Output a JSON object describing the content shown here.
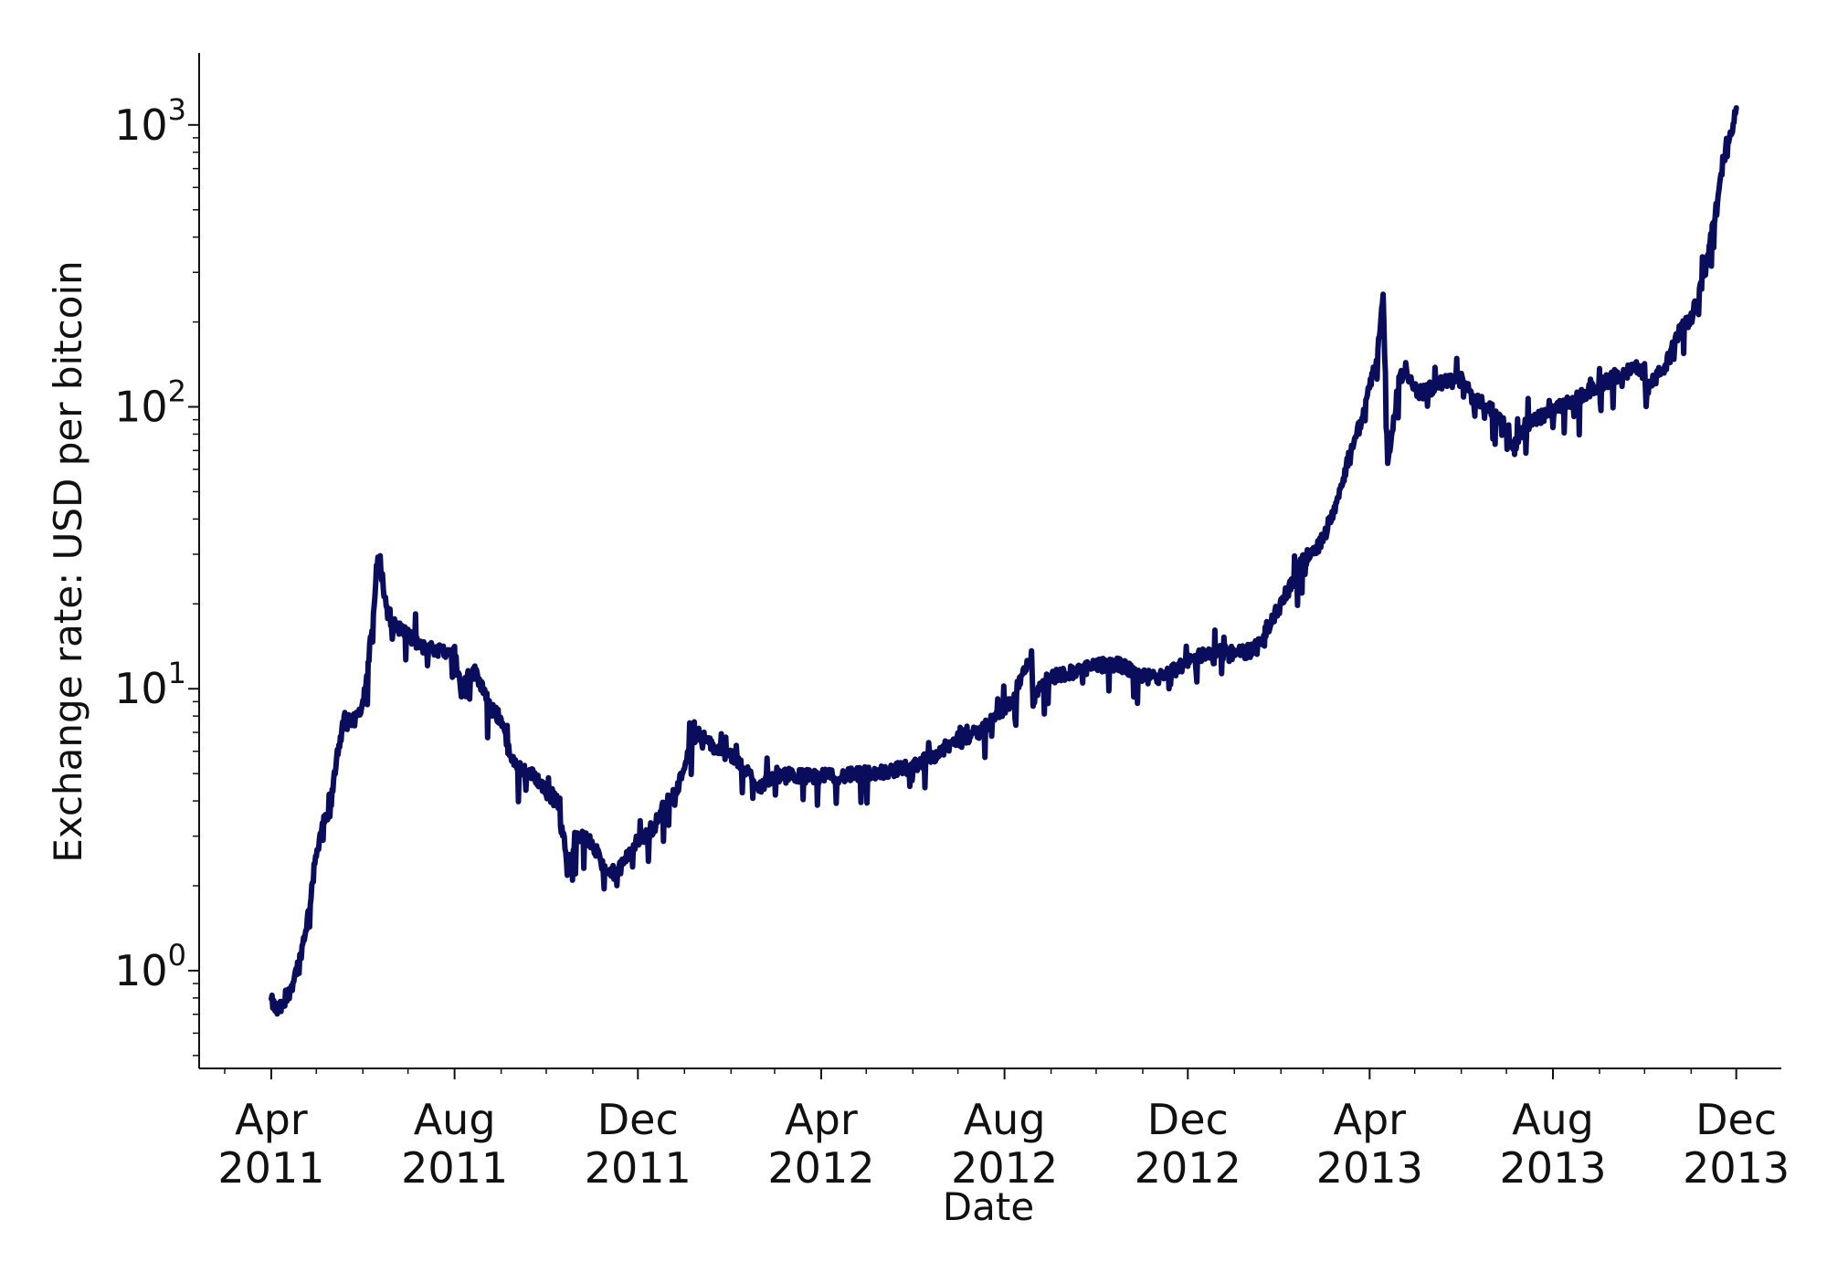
{
  "chart_data": {
    "type": "line",
    "title": "",
    "xlabel": "Date",
    "ylabel": "Exchange rate: USD per bitcoin",
    "yscale": "log",
    "ylim": [
      0.45,
      1800
    ],
    "xlim": [
      "2011-02-12",
      "2013-12-31"
    ],
    "grid": false,
    "legend": "none",
    "line_color": "#0a0d5c",
    "x_ticks": [
      {
        "date": "2011-04-01",
        "line1": "Apr",
        "line2": "2011"
      },
      {
        "date": "2011-08-01",
        "line1": "Aug",
        "line2": "2011"
      },
      {
        "date": "2011-12-01",
        "line1": "Dec",
        "line2": "2011"
      },
      {
        "date": "2012-04-01",
        "line1": "Apr",
        "line2": "2012"
      },
      {
        "date": "2012-08-01",
        "line1": "Aug",
        "line2": "2012"
      },
      {
        "date": "2012-12-01",
        "line1": "Dec",
        "line2": "2012"
      },
      {
        "date": "2013-04-01",
        "line1": "Apr",
        "line2": "2013"
      },
      {
        "date": "2013-08-01",
        "line1": "Aug",
        "line2": "2013"
      },
      {
        "date": "2013-12-01",
        "line1": "Dec",
        "line2": "2013"
      }
    ],
    "y_ticks": [
      {
        "value": 1,
        "base": "10",
        "exp": "0"
      },
      {
        "value": 10,
        "base": "10",
        "exp": "1"
      },
      {
        "value": 100,
        "base": "10",
        "exp": "2"
      },
      {
        "value": 1000,
        "base": "10",
        "exp": "3"
      }
    ],
    "series": [
      {
        "x": [
          "2011-04-01",
          "2011-04-05",
          "2011-04-10",
          "2011-04-15",
          "2011-04-20",
          "2011-04-25",
          "2011-05-01",
          "2011-05-05",
          "2011-05-10",
          "2011-05-15",
          "2011-05-20",
          "2011-05-25",
          "2011-06-01",
          "2011-06-05",
          "2011-06-08",
          "2011-06-10",
          "2011-06-12",
          "2011-06-15",
          "2011-06-19",
          "2011-06-25",
          "2011-07-01",
          "2011-07-10",
          "2011-07-20",
          "2011-08-01",
          "2011-08-05",
          "2011-08-10",
          "2011-08-15",
          "2011-08-20",
          "2011-08-25",
          "2011-09-01",
          "2011-09-08",
          "2011-09-15",
          "2011-09-20",
          "2011-09-25",
          "2011-10-01",
          "2011-10-10",
          "2011-10-15",
          "2011-10-20",
          "2011-10-25",
          "2011-11-01",
          "2011-11-10",
          "2011-11-18",
          "2011-11-25",
          "2011-12-01",
          "2011-12-10",
          "2011-12-20",
          "2011-12-28",
          "2012-01-05",
          "2012-01-10",
          "2012-01-20",
          "2012-02-01",
          "2012-02-10",
          "2012-02-20",
          "2012-03-01",
          "2012-03-15",
          "2012-04-01",
          "2012-04-15",
          "2012-05-01",
          "2012-05-15",
          "2012-06-01",
          "2012-06-15",
          "2012-07-01",
          "2012-07-15",
          "2012-08-01",
          "2012-08-08",
          "2012-08-12",
          "2012-08-16",
          "2012-08-19",
          "2012-08-20",
          "2012-08-25",
          "2012-09-01",
          "2012-09-15",
          "2012-10-01",
          "2012-10-15",
          "2012-11-01",
          "2012-11-15",
          "2012-12-01",
          "2012-12-15",
          "2013-01-01",
          "2013-01-15",
          "2013-02-01",
          "2013-02-15",
          "2013-03-01",
          "2013-03-10",
          "2013-03-20",
          "2013-03-28",
          "2013-04-03",
          "2013-04-06",
          "2013-04-08",
          "2013-04-10",
          "2013-04-12",
          "2013-04-13",
          "2013-04-16",
          "2013-04-20",
          "2013-04-25",
          "2013-05-01",
          "2013-05-10",
          "2013-05-20",
          "2013-06-01",
          "2013-06-10",
          "2013-06-20",
          "2013-07-01",
          "2013-07-05",
          "2013-07-15",
          "2013-08-01",
          "2013-08-15",
          "2013-09-01",
          "2013-09-15",
          "2013-10-01",
          "2013-10-02",
          "2013-10-15",
          "2013-10-25",
          "2013-11-01",
          "2013-11-05",
          "2013-11-10",
          "2013-11-15",
          "2013-11-18",
          "2013-11-22",
          "2013-11-25",
          "2013-11-29",
          "2013-12-01"
        ],
        "y": [
          0.78,
          0.72,
          0.76,
          0.9,
          1.1,
          1.5,
          2.6,
          3.3,
          3.6,
          6.0,
          7.8,
          7.5,
          8.9,
          13.0,
          18.0,
          26.0,
          30.0,
          22.0,
          17.0,
          16.5,
          15.5,
          14.0,
          13.8,
          13.5,
          10.0,
          11.0,
          11.5,
          10.0,
          8.5,
          7.8,
          5.5,
          5.2,
          5.0,
          4.8,
          4.3,
          3.9,
          2.3,
          2.9,
          3.0,
          2.8,
          2.2,
          2.25,
          2.6,
          2.9,
          3.1,
          4.0,
          4.5,
          6.5,
          7.0,
          6.2,
          5.8,
          5.2,
          4.5,
          4.9,
          4.9,
          4.9,
          4.9,
          5.0,
          5.1,
          5.3,
          5.8,
          6.6,
          7.0,
          8.5,
          9.5,
          11.0,
          12.0,
          13.5,
          9.0,
          10.5,
          11.0,
          11.5,
          12.0,
          12.3,
          11.0,
          11.0,
          12.5,
          13.5,
          13.4,
          13.7,
          20.0,
          28.0,
          34.0,
          46.0,
          72.0,
          93.0,
          130.0,
          150.0,
          190.0,
          250.0,
          100.0,
          62.0,
          80.0,
          120.0,
          140.0,
          110.0,
          115.0,
          122.0,
          125.0,
          105.0,
          100.0,
          85.0,
          70.0,
          87.0,
          97.0,
          105.0,
          120.0,
          130.0,
          140.0,
          115.0,
          140.0,
          190.0,
          205.0,
          240.0,
          300.0,
          420.0,
          530.0,
          780.0,
          800.0,
          1000.0,
          1150.0
        ]
      }
    ]
  }
}
